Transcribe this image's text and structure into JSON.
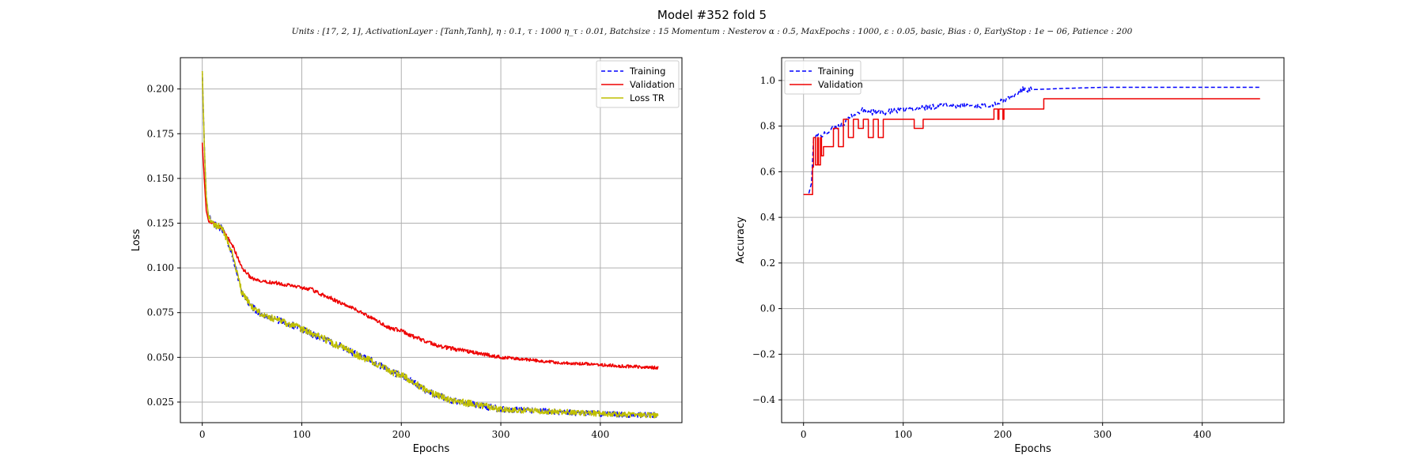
{
  "figure": {
    "title": "Model #352 fold 5",
    "subtitle": "Units : [17, 2, 1], ActivationLayer : [Tanh,Tanh], η : 0.1, τ : 1000 η_τ : 0.01, Batchsize : 15 Momentum : Nesterov α : 0.5, MaxEpochs : 1000, ε : 0.05, basic, Bias : 0, EarlyStop : 1e − 06, Patience : 200"
  },
  "chart_data": [
    {
      "type": "line",
      "id": "loss",
      "title": "",
      "xlabel": "Epochs",
      "ylabel": "Loss",
      "xlim": [
        -22,
        482
      ],
      "ylim": [
        0.0135,
        0.2175
      ],
      "xticks": [
        0,
        100,
        200,
        300,
        400
      ],
      "yticks": [
        0.025,
        0.05,
        0.075,
        0.1,
        0.125,
        0.15,
        0.175,
        0.2
      ],
      "ytick_labels": [
        "0.025",
        "0.050",
        "0.075",
        "0.100",
        "0.125",
        "0.150",
        "0.175",
        "0.200"
      ],
      "grid": true,
      "legend_position": "top-right",
      "series": [
        {
          "name": "Training",
          "color": "#0000ff",
          "dashed": true,
          "x": [
            0,
            2,
            4,
            6,
            10,
            20,
            30,
            40,
            50,
            60,
            70,
            80,
            90,
            100,
            110,
            120,
            130,
            140,
            150,
            160,
            170,
            180,
            190,
            200,
            210,
            220,
            230,
            240,
            250,
            260,
            270,
            280,
            290,
            300,
            320,
            340,
            360,
            380,
            400,
            420,
            440,
            458
          ],
          "y": [
            0.21,
            0.17,
            0.14,
            0.13,
            0.125,
            0.122,
            0.108,
            0.086,
            0.078,
            0.074,
            0.072,
            0.07,
            0.068,
            0.066,
            0.063,
            0.061,
            0.058,
            0.056,
            0.053,
            0.05,
            0.048,
            0.045,
            0.042,
            0.04,
            0.037,
            0.033,
            0.03,
            0.028,
            0.026,
            0.025,
            0.024,
            0.023,
            0.022,
            0.021,
            0.0205,
            0.02,
            0.0195,
            0.019,
            0.0185,
            0.018,
            0.0178,
            0.0175
          ]
        },
        {
          "name": "Validation",
          "color": "#ee0000",
          "dashed": false,
          "x": [
            0,
            2,
            4,
            6,
            10,
            20,
            30,
            40,
            50,
            60,
            70,
            80,
            90,
            100,
            110,
            120,
            130,
            140,
            150,
            160,
            170,
            180,
            190,
            200,
            210,
            220,
            230,
            240,
            250,
            260,
            270,
            280,
            290,
            300,
            320,
            340,
            360,
            380,
            400,
            420,
            440,
            458
          ],
          "y": [
            0.17,
            0.15,
            0.132,
            0.127,
            0.125,
            0.122,
            0.113,
            0.1,
            0.094,
            0.092,
            0.092,
            0.091,
            0.09,
            0.089,
            0.088,
            0.085,
            0.083,
            0.08,
            0.078,
            0.075,
            0.072,
            0.069,
            0.066,
            0.065,
            0.062,
            0.06,
            0.058,
            0.056,
            0.055,
            0.054,
            0.053,
            0.052,
            0.051,
            0.05,
            0.049,
            0.048,
            0.047,
            0.0465,
            0.0458,
            0.0452,
            0.0447,
            0.0442
          ]
        },
        {
          "name": "Loss TR",
          "color": "#bfbf00",
          "dashed": false,
          "x": [
            0,
            2,
            4,
            6,
            10,
            20,
            30,
            40,
            50,
            60,
            70,
            80,
            90,
            100,
            110,
            120,
            130,
            140,
            150,
            160,
            170,
            180,
            190,
            200,
            210,
            220,
            230,
            240,
            250,
            260,
            270,
            280,
            290,
            300,
            320,
            340,
            360,
            380,
            400,
            420,
            440,
            458
          ],
          "y": [
            0.21,
            0.17,
            0.14,
            0.13,
            0.125,
            0.122,
            0.108,
            0.086,
            0.078,
            0.074,
            0.072,
            0.07,
            0.068,
            0.066,
            0.063,
            0.061,
            0.058,
            0.056,
            0.053,
            0.05,
            0.048,
            0.045,
            0.042,
            0.04,
            0.037,
            0.033,
            0.03,
            0.028,
            0.026,
            0.025,
            0.024,
            0.023,
            0.022,
            0.021,
            0.0205,
            0.02,
            0.0195,
            0.019,
            0.0185,
            0.018,
            0.0178,
            0.0175
          ]
        }
      ]
    },
    {
      "type": "line",
      "id": "accuracy",
      "title": "",
      "xlabel": "Epochs",
      "ylabel": "Accuracy",
      "xlim": [
        -22,
        482
      ],
      "ylim": [
        -0.5,
        1.1
      ],
      "xticks": [
        0,
        100,
        200,
        300,
        400
      ],
      "yticks": [
        -0.4,
        -0.2,
        0.0,
        0.2,
        0.4,
        0.6,
        0.8,
        1.0
      ],
      "ytick_labels": [
        "−0.4",
        "−0.2",
        "0.0",
        "0.2",
        "0.4",
        "0.6",
        "0.8",
        "1.0"
      ],
      "grid": true,
      "legend_position": "top-left",
      "series": [
        {
          "name": "Training",
          "color": "#0000ff",
          "dashed": true,
          "x": [
            0,
            5,
            8,
            10,
            12,
            20,
            30,
            40,
            50,
            60,
            70,
            80,
            100,
            120,
            140,
            160,
            180,
            195,
            200,
            210,
            220,
            230,
            260,
            300,
            360,
            420,
            458
          ],
          "y": [
            0.5,
            0.5,
            0.55,
            0.74,
            0.76,
            0.76,
            0.79,
            0.81,
            0.85,
            0.87,
            0.86,
            0.86,
            0.87,
            0.88,
            0.89,
            0.89,
            0.89,
            0.9,
            0.91,
            0.93,
            0.96,
            0.96,
            0.965,
            0.97,
            0.97,
            0.97,
            0.97
          ]
        },
        {
          "name": "Validation",
          "color": "#ee0000",
          "dashed": false,
          "x": [
            0,
            8,
            9,
            10,
            12,
            14,
            15,
            17,
            18,
            20,
            25,
            30,
            35,
            40,
            45,
            50,
            55,
            60,
            65,
            70,
            75,
            80,
            100,
            110,
            111,
            120,
            150,
            190,
            191,
            195,
            196,
            200,
            201,
            220,
            230,
            240,
            241,
            300,
            400,
            458
          ],
          "y": [
            0.5,
            0.5,
            0.62,
            0.75,
            0.63,
            0.75,
            0.63,
            0.75,
            0.67,
            0.71,
            0.71,
            0.79,
            0.71,
            0.83,
            0.75,
            0.83,
            0.79,
            0.83,
            0.75,
            0.83,
            0.75,
            0.83,
            0.83,
            0.83,
            0.79,
            0.83,
            0.83,
            0.83,
            0.875,
            0.83,
            0.875,
            0.83,
            0.875,
            0.875,
            0.875,
            0.875,
            0.92,
            0.92,
            0.92,
            0.92
          ]
        }
      ]
    }
  ]
}
